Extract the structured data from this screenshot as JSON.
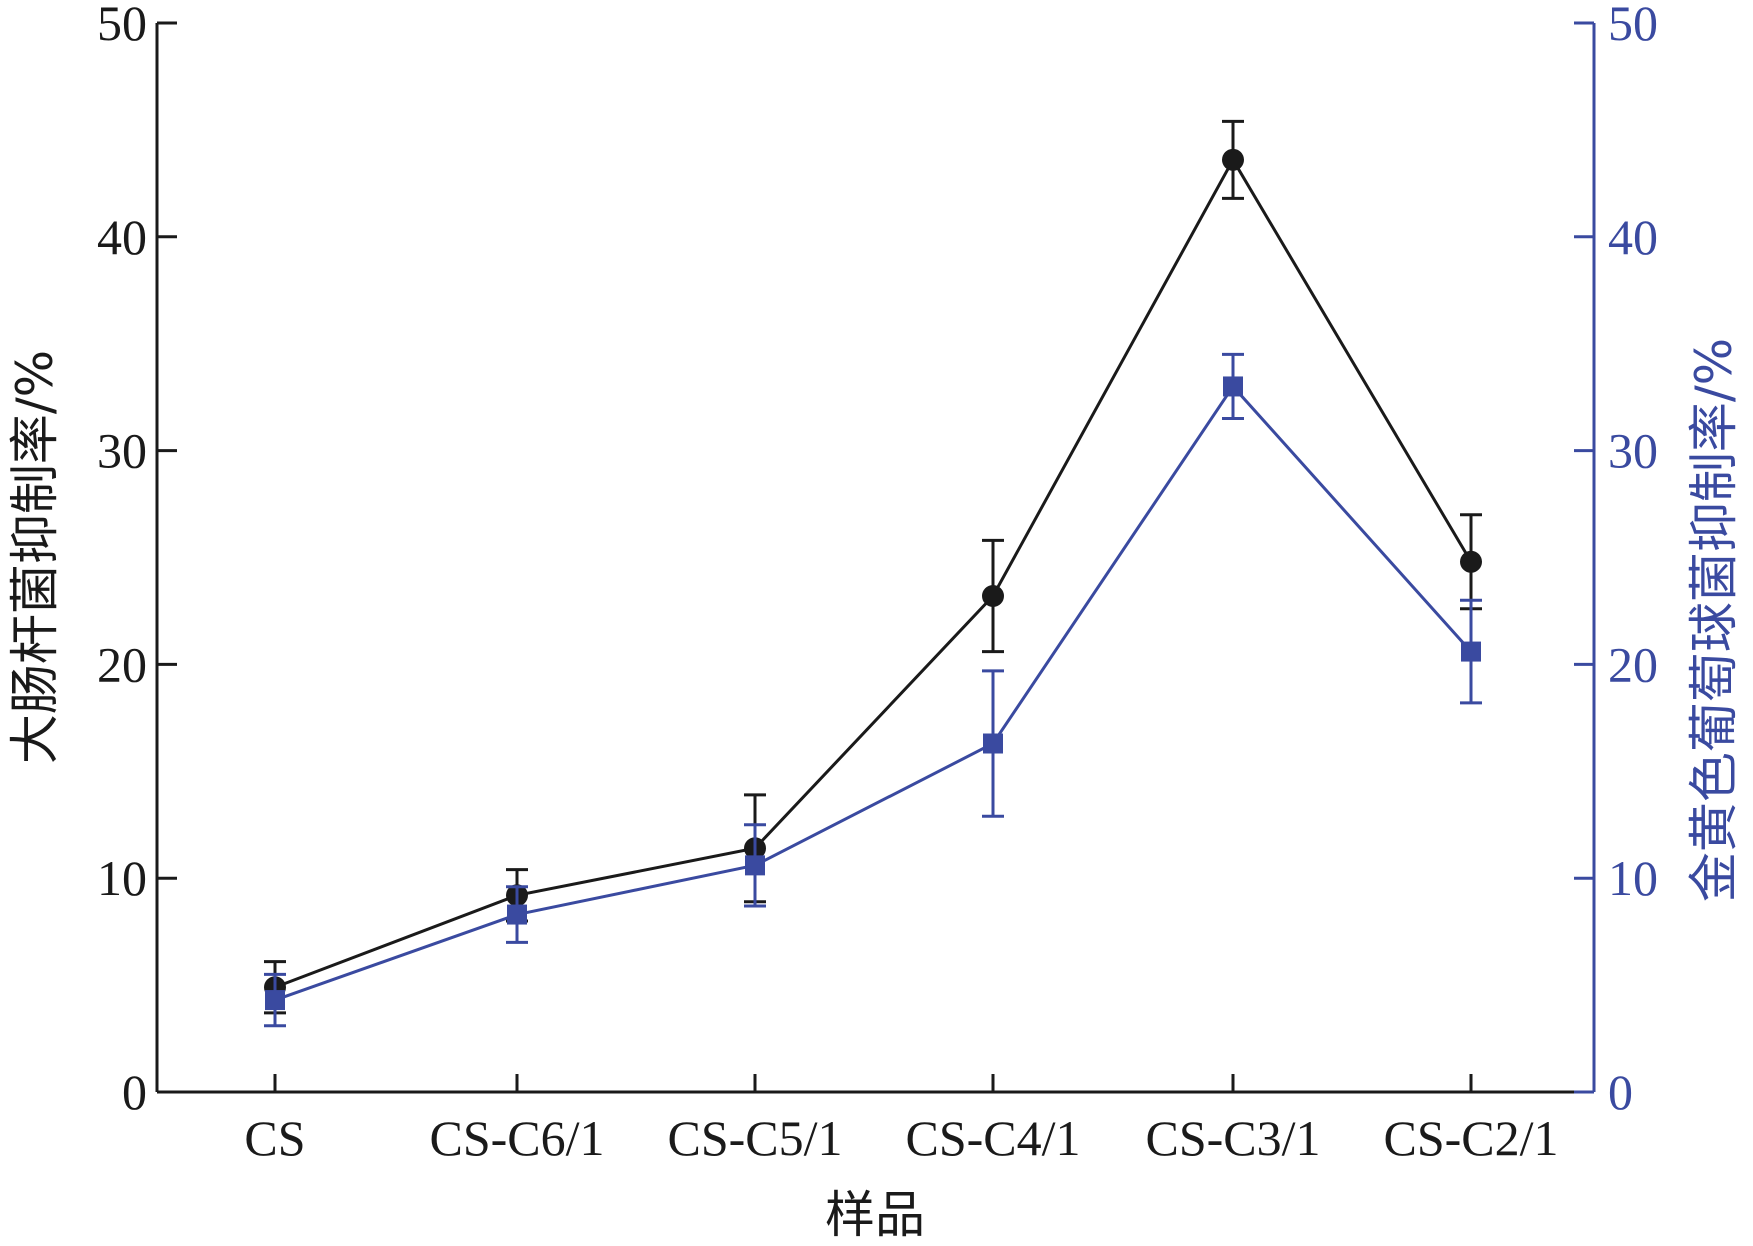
{
  "chart_data": {
    "type": "line",
    "categories": [
      "CS",
      "CS-C6/1",
      "CS-C5/1",
      "CS-C4/1",
      "CS-C3/1",
      "CS-C2/1"
    ],
    "xlabel": "样品",
    "ylabel_left": "大肠杆菌抑制率/%",
    "ylabel_right": "金黄色葡萄球菌抑制率/%",
    "ylim": [
      0,
      50
    ],
    "yticks": [
      0,
      10,
      20,
      30,
      40,
      50
    ],
    "grid": false,
    "legend": "none",
    "series": [
      {
        "axis": "left",
        "marker": "circle",
        "color": "#1a1a1a",
        "values": [
          4.9,
          9.2,
          11.4,
          23.2,
          43.6,
          24.8
        ],
        "errors": [
          1.2,
          1.2,
          2.5,
          2.6,
          1.8,
          2.2
        ]
      },
      {
        "axis": "right",
        "marker": "square",
        "color": "#3a4aa0",
        "values": [
          4.3,
          8.3,
          10.6,
          16.3,
          33.0,
          20.6
        ],
        "errors": [
          1.2,
          1.3,
          1.9,
          3.4,
          1.5,
          2.4
        ]
      }
    ]
  }
}
